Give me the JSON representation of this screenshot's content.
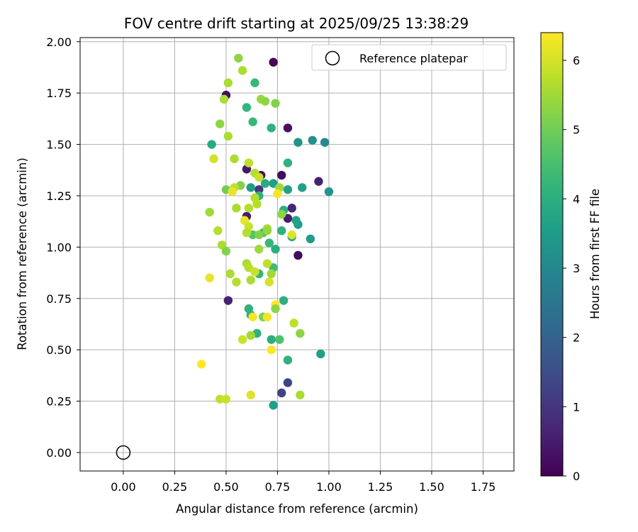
{
  "chart_data": {
    "type": "scatter",
    "title": "FOV centre drift starting at 2025/09/25 13:38:29",
    "xlabel": "Angular distance from reference (arcmin)",
    "ylabel": "Rotation from reference (arcmin)",
    "xlim": [
      -0.21,
      1.9
    ],
    "ylim": [
      -0.09,
      2.02
    ],
    "xticks": [
      0.0,
      0.25,
      0.5,
      0.75,
      1.0,
      1.25,
      1.5,
      1.75
    ],
    "xtick_labels": [
      "0.00",
      "0.25",
      "0.50",
      "0.75",
      "1.00",
      "1.25",
      "1.50",
      "1.75"
    ],
    "yticks": [
      0.0,
      0.25,
      0.5,
      0.75,
      1.0,
      1.25,
      1.5,
      1.75,
      2.0
    ],
    "ytick_labels": [
      "0.00",
      "0.25",
      "0.50",
      "0.75",
      "1.00",
      "1.25",
      "1.50",
      "1.75",
      "2.00"
    ],
    "grid": true,
    "legend": {
      "position": "top-right",
      "entries": [
        "Reference platepar"
      ]
    },
    "reference_point": {
      "x": 0.0,
      "y": 0.0,
      "label": "Reference platepar"
    },
    "colorbar": {
      "label": "Hours from first FF file",
      "colormap": "viridis",
      "range": [
        0,
        6.4
      ],
      "ticks": [
        0,
        1,
        2,
        3,
        4,
        5,
        6
      ],
      "tick_labels": [
        "0",
        "1",
        "2",
        "3",
        "4",
        "5",
        "6"
      ]
    },
    "series": [
      {
        "name": "FOV centre drift",
        "columns": [
          "x",
          "y",
          "hours"
        ],
        "points": [
          [
            0.73,
            1.9,
            0.1
          ],
          [
            0.5,
            1.74,
            0.2
          ],
          [
            0.8,
            1.58,
            0.3
          ],
          [
            0.6,
            1.38,
            0.4
          ],
          [
            0.67,
            1.35,
            0.3
          ],
          [
            0.77,
            1.35,
            0.2
          ],
          [
            0.95,
            1.32,
            0.6
          ],
          [
            0.6,
            1.15,
            0.5
          ],
          [
            0.82,
            1.19,
            0.7
          ],
          [
            0.8,
            1.14,
            0.5
          ],
          [
            0.85,
            0.96,
            0.2
          ],
          [
            0.51,
            0.74,
            0.6
          ],
          [
            0.8,
            0.34,
            1.3
          ],
          [
            0.77,
            0.29,
            1.3
          ],
          [
            0.66,
            1.28,
            1.0
          ],
          [
            0.43,
            1.5,
            3.9
          ],
          [
            0.85,
            1.51,
            3.3
          ],
          [
            0.92,
            1.52,
            3.2
          ],
          [
            0.98,
            1.51,
            3.0
          ],
          [
            0.8,
            1.41,
            4.1
          ],
          [
            0.72,
            1.58,
            4.1
          ],
          [
            0.63,
            1.61,
            4.3
          ],
          [
            0.64,
            1.8,
            4.3
          ],
          [
            0.6,
            1.68,
            4.2
          ],
          [
            0.69,
            1.31,
            3.9
          ],
          [
            0.73,
            1.31,
            3.6
          ],
          [
            0.62,
            1.29,
            3.5
          ],
          [
            0.8,
            1.28,
            3.7
          ],
          [
            0.87,
            1.29,
            3.6
          ],
          [
            1.0,
            1.27,
            3.3
          ],
          [
            0.66,
            1.25,
            4.1
          ],
          [
            0.77,
            1.08,
            4.1
          ],
          [
            0.85,
            1.11,
            3.5
          ],
          [
            0.84,
            1.13,
            3.7
          ],
          [
            0.82,
            1.05,
            3.9
          ],
          [
            0.78,
            1.18,
            4.0
          ],
          [
            0.91,
            1.04,
            3.5
          ],
          [
            0.74,
            0.99,
            4.0
          ],
          [
            0.71,
            1.02,
            4.3
          ],
          [
            0.66,
            0.87,
            4.2
          ],
          [
            0.73,
            0.9,
            4.4
          ],
          [
            0.61,
            0.7,
            4.1
          ],
          [
            0.62,
            0.67,
            4.0
          ],
          [
            0.65,
            0.58,
            4.1
          ],
          [
            0.72,
            0.55,
            4.0
          ],
          [
            0.76,
            0.55,
            4.6
          ],
          [
            0.78,
            0.74,
            4.0
          ],
          [
            0.8,
            0.45,
            4.1
          ],
          [
            0.96,
            0.48,
            3.6
          ],
          [
            0.73,
            0.23,
            3.6
          ],
          [
            0.68,
            1.07,
            4.5
          ],
          [
            0.63,
            1.06,
            4.7
          ],
          [
            0.56,
            1.92,
            5.3
          ],
          [
            0.58,
            1.86,
            5.6
          ],
          [
            0.51,
            1.8,
            5.6
          ],
          [
            0.49,
            1.72,
            5.6
          ],
          [
            0.67,
            1.72,
            5.4
          ],
          [
            0.69,
            1.71,
            5.3
          ],
          [
            0.74,
            1.7,
            5.2
          ],
          [
            0.47,
            1.6,
            5.3
          ],
          [
            0.51,
            1.54,
            5.6
          ],
          [
            0.44,
            1.43,
            6.0
          ],
          [
            0.54,
            1.43,
            5.6
          ],
          [
            0.61,
            1.41,
            5.8
          ],
          [
            0.64,
            1.36,
            5.7
          ],
          [
            0.66,
            1.34,
            5.9
          ],
          [
            0.57,
            1.3,
            5.2
          ],
          [
            0.54,
            1.29,
            5.8
          ],
          [
            0.5,
            1.28,
            5.0
          ],
          [
            0.53,
            1.27,
            6.2
          ],
          [
            0.76,
            1.29,
            5.5
          ],
          [
            0.75,
            1.26,
            6.3
          ],
          [
            0.65,
            1.21,
            5.7
          ],
          [
            0.64,
            1.24,
            5.7
          ],
          [
            0.55,
            1.19,
            5.6
          ],
          [
            0.61,
            1.19,
            5.7
          ],
          [
            0.42,
            1.17,
            5.5
          ],
          [
            0.77,
            1.16,
            5.3
          ],
          [
            0.59,
            1.13,
            6.2
          ],
          [
            0.61,
            1.1,
            5.9
          ],
          [
            0.7,
            1.09,
            5.6
          ],
          [
            0.7,
            1.08,
            5.4
          ],
          [
            0.6,
            1.07,
            5.7
          ],
          [
            0.46,
            1.08,
            5.7
          ],
          [
            0.66,
            1.06,
            5.2
          ],
          [
            0.82,
            1.06,
            6.1
          ],
          [
            0.48,
            1.01,
            5.6
          ],
          [
            0.5,
            0.98,
            5.2
          ],
          [
            0.66,
            0.99,
            5.5
          ],
          [
            0.6,
            0.92,
            5.6
          ],
          [
            0.61,
            0.9,
            5.7
          ],
          [
            0.7,
            0.92,
            5.8
          ],
          [
            0.72,
            0.87,
            5.5
          ],
          [
            0.52,
            0.87,
            5.6
          ],
          [
            0.64,
            0.88,
            5.9
          ],
          [
            0.62,
            0.84,
            5.6
          ],
          [
            0.55,
            0.83,
            5.7
          ],
          [
            0.71,
            0.83,
            6.0
          ],
          [
            0.42,
            0.85,
            6.2
          ],
          [
            0.74,
            0.72,
            6.4
          ],
          [
            0.74,
            0.7,
            5.3
          ],
          [
            0.63,
            0.66,
            6.3
          ],
          [
            0.68,
            0.66,
            5.1
          ],
          [
            0.7,
            0.66,
            6.3
          ],
          [
            0.83,
            0.63,
            5.8
          ],
          [
            0.86,
            0.58,
            5.3
          ],
          [
            0.62,
            0.57,
            5.5
          ],
          [
            0.58,
            0.55,
            5.9
          ],
          [
            0.72,
            0.5,
            6.4
          ],
          [
            0.38,
            0.43,
            6.4
          ],
          [
            0.47,
            0.26,
            5.8
          ],
          [
            0.5,
            0.26,
            5.9
          ],
          [
            0.62,
            0.28,
            6.1
          ],
          [
            0.86,
            0.28,
            5.6
          ]
        ]
      }
    ]
  }
}
